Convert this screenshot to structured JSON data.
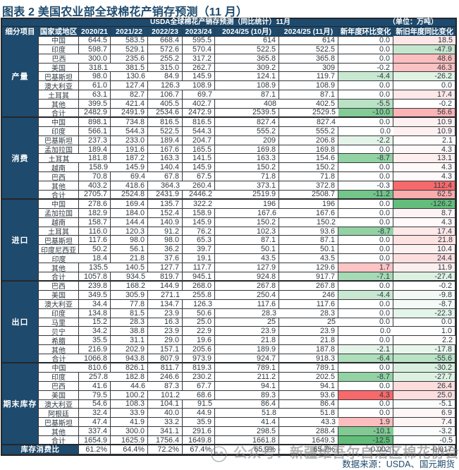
{
  "figure_title": "图表 2 美国农业部全球棉花产销存预测（11 月）",
  "source_note": "数据来源：USDA、国元期货",
  "watermark": {
    "logo": "cotton-association-seal",
    "prefix": "公众号：",
    "name": "新疆维吾尔自治区棉花协会"
  },
  "colors": {
    "header_bg": "#1d4a6d",
    "title_text": "#1d4a6d",
    "increase_color": "#F8696B",
    "decrease_color": "#63BE7B"
  },
  "chart_data": {
    "type": "table",
    "title": "USDA全球棉花产销存预测（同比统计）11月",
    "unit": "（单位：万吨）",
    "columns": [
      "细分项目",
      "国家或地区",
      "2020/21",
      "2021/22",
      "2022/23",
      "2023/24",
      "2024/25 (10月)",
      "2024/25 (11月)",
      "新年度环比变化",
      "新旧年度同比变化"
    ],
    "groups": [
      {
        "label": "产量",
        "rows": [
          [
            "中国",
            "644.5",
            "583.5",
            "668.4",
            "595.5",
            "614",
            "614",
            "0.0",
            "18.5"
          ],
          [
            "印度",
            "598.7",
            "529.1",
            "572.6",
            "570.4",
            "522.5",
            "522.5",
            "0.0",
            "-47.9"
          ],
          [
            "巴西",
            "300.0",
            "235.6",
            "255.2",
            "317.2",
            "365.8",
            "365.8",
            "0.0",
            "48.6"
          ],
          [
            "美国",
            "318.1",
            "381.5",
            "315.0",
            "262.7",
            "309.2",
            "309",
            "-0.2",
            "46.3"
          ],
          [
            "巴基斯坦",
            "98.0",
            "130.6",
            "84.9",
            "145.9",
            "124.1",
            "119.7",
            "-4.4",
            "-26.2"
          ],
          [
            "澳大利亚",
            "61.0",
            "127.4",
            "126.3",
            "108.9",
            "108.9",
            "108.9",
            "0.0",
            "0.0"
          ],
          [
            "土耳其",
            "63.1",
            "82.7",
            "106.7",
            "69.7",
            "87.1",
            "87.1",
            "0.0",
            "17.4"
          ],
          [
            "其他",
            "399.5",
            "421.4",
            "405.5",
            "402.7",
            "408",
            "402.5",
            "-5.5",
            "-0.2"
          ],
          [
            "合计",
            "2482.9",
            "2491.9",
            "2534.6",
            "2472.9",
            "2539.5",
            "2529.5",
            "-10.0",
            "56.6"
          ]
        ]
      },
      {
        "label": "消费",
        "rows": [
          [
            "中国",
            "898.1",
            "734.8",
            "816.5",
            "816.5",
            "827.4",
            "827.4",
            "0.0",
            "10.9"
          ],
          [
            "印度",
            "566.1",
            "544.3",
            "522.5",
            "544.3",
            "555.2",
            "555.2",
            "0.0",
            "10.9"
          ],
          [
            "巴基斯坦",
            "237.3",
            "233.0",
            "189.4",
            "204.7",
            "209",
            "206.8",
            "-2.2",
            "2.1"
          ],
          [
            "孟加拉国",
            "189.4",
            "191.6",
            "167.6",
            "165.5",
            "169.8",
            "169.8",
            "0.0",
            "4.3"
          ],
          [
            "土耳其",
            "181.8",
            "187.2",
            "163.3",
            "141.5",
            "163.3",
            "154.6",
            "-8.7",
            "13.1"
          ],
          [
            "越南",
            "158.9",
            "145.9",
            "140.4",
            "145.9",
            "150.2",
            "150.2",
            "0.0",
            "4.3"
          ],
          [
            "巴西",
            "70.8",
            "69.4",
            "67.8",
            "67.5",
            "71.8",
            "71.8",
            "0.0",
            "4.3"
          ],
          [
            "其他",
            "403.2",
            "418.6",
            "364.3",
            "260.4",
            "373.1",
            "372.8",
            "-0.3",
            "112.4"
          ],
          [
            "合计",
            "2705.7",
            "2524.8",
            "2431.9",
            "2446.2",
            "2519.9",
            "2508.7",
            "-11.2",
            "62.5"
          ]
        ]
      },
      {
        "label": "进口",
        "rows": [
          [
            "中国",
            "278.6",
            "169.4",
            "135.7",
            "322.2",
            "196",
            "196",
            "0.0",
            "-126.2"
          ],
          [
            "孟加拉国",
            "182.9",
            "184.0",
            "152.4",
            "158.9",
            "167.6",
            "167.6",
            "0.0",
            "8.7"
          ],
          [
            "越南",
            "158.7",
            "144.4",
            "140.9",
            "145.9",
            "150.2",
            "150.2",
            "0.0",
            "4.3"
          ],
          [
            "土耳其",
            "116.0",
            "120.3",
            "91.2",
            "76.2",
            "102.3",
            "93.6",
            "-8.7",
            "17.4"
          ],
          [
            "巴基斯坦",
            "117.6",
            "98.0",
            "98.0",
            "65.3",
            "87.1",
            "87.1",
            "0.0",
            "21.8"
          ],
          [
            "印度尼西亚",
            "50.2",
            "56.1",
            "36.2",
            "39.7",
            "50.1",
            "50.1",
            "0.0",
            "10.4"
          ],
          [
            "印度",
            "18.4",
            "21.8",
            "37.6",
            "19.1",
            "43.5",
            "43.5",
            "0.0",
            "24.4"
          ],
          [
            "其他",
            "135.5",
            "140.5",
            "127.7",
            "117.7",
            "127.9",
            "129.6",
            "1.7",
            "11.9"
          ],
          [
            "合计",
            "1057.8",
            "934.5",
            "819.7",
            "945.1",
            "924.8",
            "917.7",
            "-7.1",
            "-27.4"
          ]
        ]
      },
      {
        "label": "出口",
        "rows": [
          [
            "巴西",
            "239.8",
            "168.2",
            "144.9",
            "268.0",
            "267.8",
            "267.8",
            "0.0",
            "-0.2"
          ],
          [
            "美国",
            "349.5",
            "305.9",
            "271.1",
            "255.8",
            "250.4",
            "246",
            "-4.4",
            "-9.8"
          ],
          [
            "澳大利亚",
            "34.4",
            "77.8",
            "134.7",
            "126.3",
            "117.6",
            "117.6",
            "0.0",
            "-8.7"
          ],
          [
            "印度",
            "134.8",
            "81.5",
            "23.9",
            "50.6",
            "28.3",
            "28.3",
            "0.0",
            "-22.3"
          ],
          [
            "马里",
            "15.2",
            "28.3",
            "16.3",
            "25.0",
            "25",
            "25",
            "0.0",
            "0.0"
          ],
          [
            "贝宁",
            "34.2",
            "38.8",
            "23.9",
            "22.9",
            "23.9",
            "23.9",
            "0.0",
            "1.0"
          ],
          [
            "希腊",
            "35.5",
            "31.1",
            "29.0",
            "19.6",
            "21.8",
            "21.8",
            "0.0",
            "2.2"
          ],
          [
            "其他",
            "216.9",
            "202.9",
            "157.1",
            "205.6",
            "189.9",
            "187.8",
            "-2.1",
            "-17.8"
          ],
          [
            "合计",
            "1066.8",
            "943.8",
            "807.9",
            "973.9",
            "924.7",
            "918.3",
            "-6.4",
            "-55.6"
          ]
        ]
      },
      {
        "label": "期末库存",
        "rows": [
          [
            "中国",
            "810.6",
            "826.1",
            "811.7",
            "819.3",
            "789.1",
            "789.1",
            "0.0",
            "-30.2"
          ],
          [
            "印度",
            "257.8",
            "182.8",
            "246.6",
            "230.2",
            "211.2",
            "202.5",
            "-8.7",
            "-27.7"
          ],
          [
            "巴西",
            "41.6",
            "44.6",
            "87.3",
            "67.7",
            "94.1",
            "94.1",
            "0.0",
            "26.4"
          ],
          [
            "美国",
            "79.5",
            "100.2",
            "101.2",
            "68.6",
            "89.3",
            "93.6",
            "4.3",
            "25.0"
          ],
          [
            "澳大利亚",
            "54.6",
            "108.3",
            "104.1",
            "91.5",
            "86.4",
            "86.4",
            "0.0",
            "-5.1"
          ],
          [
            "阿根廷",
            "32.4",
            "33.9",
            "40.0",
            "44.9",
            "51.8",
            "51.8",
            "0.0",
            "6.9"
          ],
          [
            "巴基斯坦",
            "47.4",
            "41.9",
            "33.2",
            "35.9",
            "41.4",
            "43.3",
            "1.9",
            "7.4"
          ],
          [
            "其他",
            "337.4",
            "300.0",
            "341.1",
            "291.6",
            "298.5",
            "288.4",
            "-10.1",
            "-3.2"
          ],
          [
            "合计",
            "1654.9",
            "1625.9",
            "1756.4",
            "1649.8",
            "1661.8",
            "1649.3",
            "-12.5",
            "-0.5"
          ]
        ]
      }
    ],
    "footer_row": {
      "label": "库存消费比",
      "values": [
        "61.2%",
        "64.4%",
        "72.2%",
        "67.4%",
        "65.9%",
        "65.7%",
        "-0.002",
        "-0.017"
      ]
    },
    "conditional_format": {
      "columns": [
        "新年度环比变化",
        "新旧年度同比变化"
      ],
      "positive_color": "#F8696B",
      "negative_color": "#63BE7B",
      "mom_min": -12.5,
      "mom_max": 4.3,
      "yoy_min": -126.2,
      "yoy_max": 112.4
    },
    "legend_position": "none",
    "grid": true
  }
}
